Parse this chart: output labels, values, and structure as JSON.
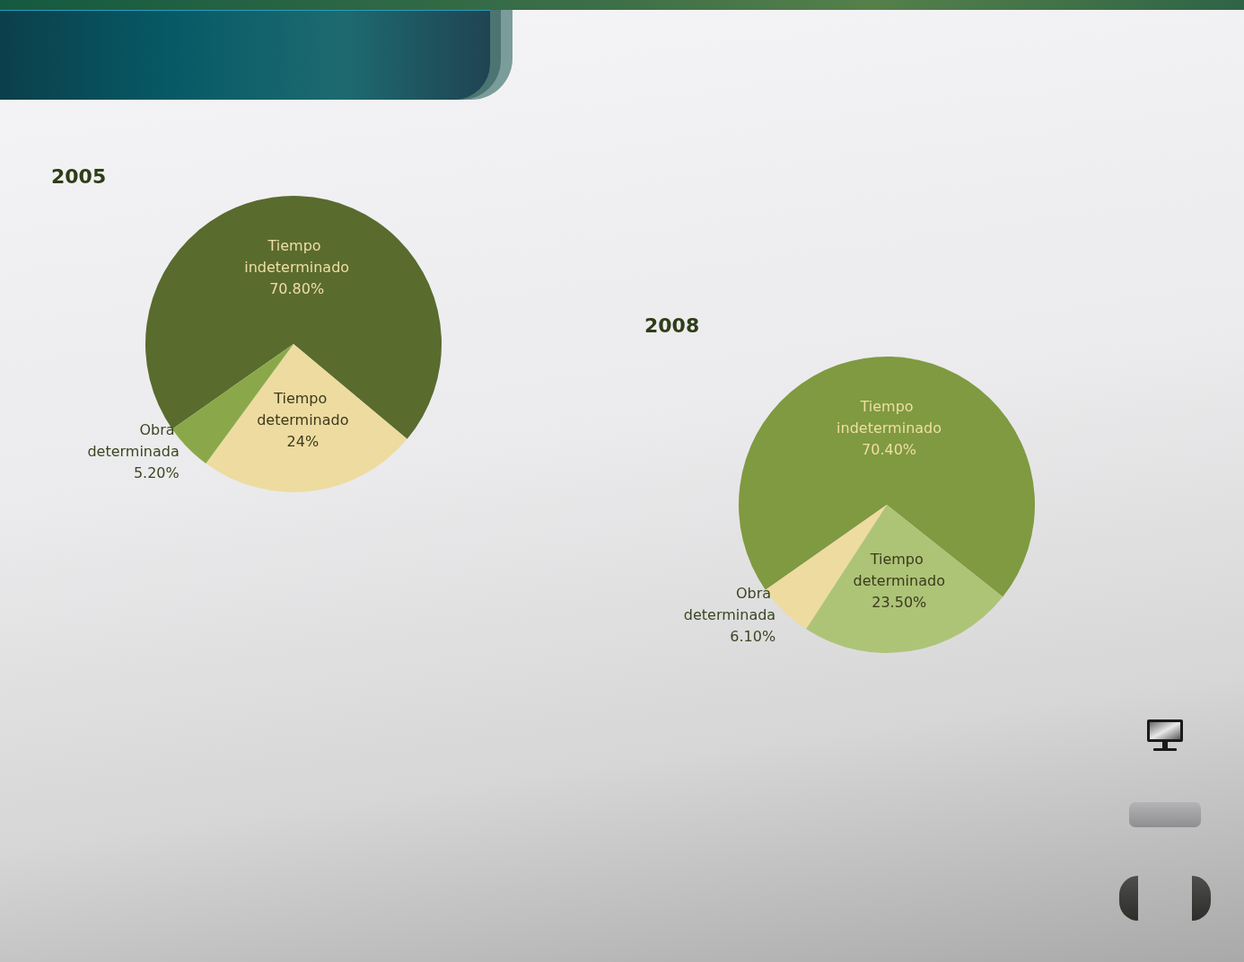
{
  "chart_data": [
    {
      "type": "pie",
      "title": "2005",
      "categories": [
        "Tiempo indeterminado",
        "Tiempo determinado",
        "Obra determinada"
      ],
      "values": [
        70.8,
        24,
        5.2
      ],
      "value_labels": [
        "70.80%",
        "24%",
        "5.20%"
      ],
      "colors": [
        "#5a6b2e",
        "#eedba0",
        "#8aa84a"
      ]
    },
    {
      "type": "pie",
      "title": "2008",
      "categories": [
        "Tiempo indeterminado",
        "Tiempo determinado",
        "Obra determinada"
      ],
      "values": [
        70.4,
        23.5,
        6.1
      ],
      "value_labels": [
        "70.40%",
        "23.50%",
        "6.10%"
      ],
      "colors": [
        "#7f9a40",
        "#adc477",
        "#eedba0"
      ]
    }
  ]
}
